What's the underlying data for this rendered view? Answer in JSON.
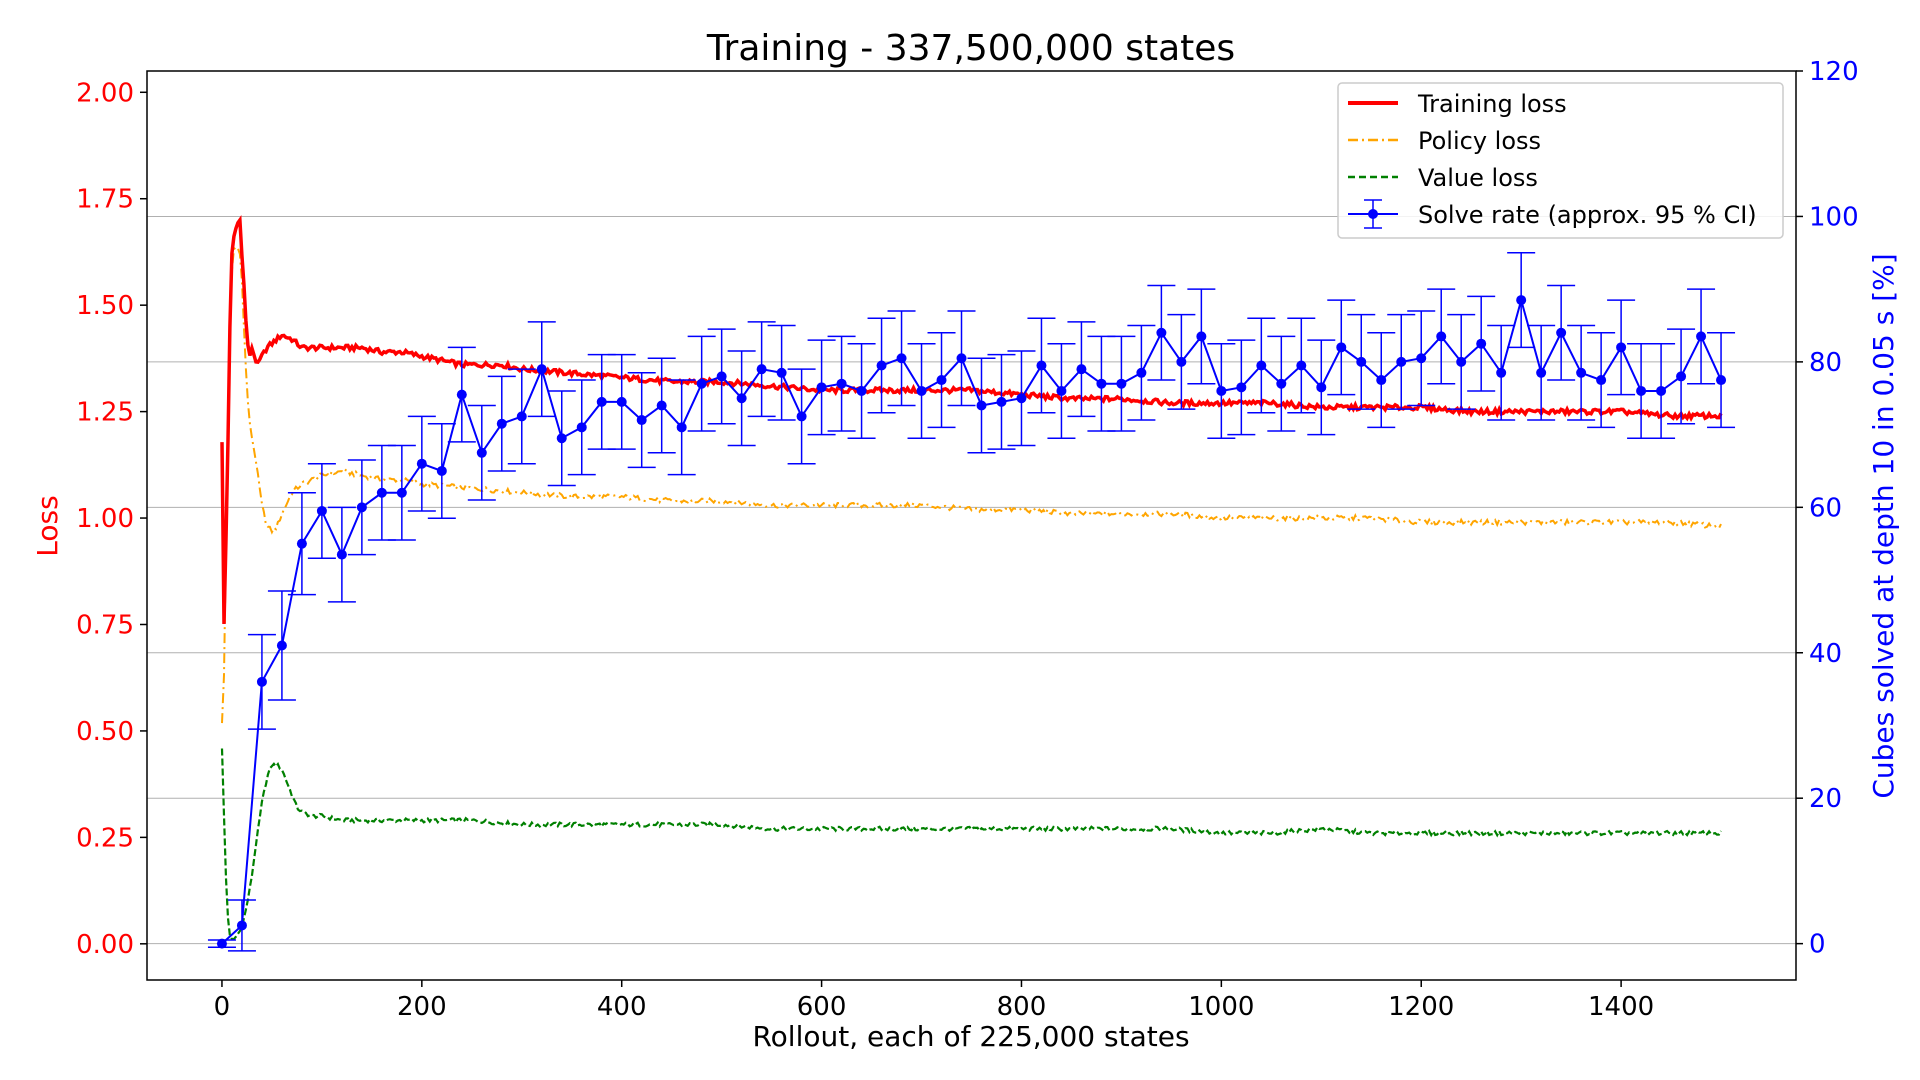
{
  "chart_data": {
    "type": "line",
    "title": "Training - 337,500,000 states",
    "xlabel": "Rollout, each of 225,000 states",
    "ylabel_left": "Loss",
    "ylabel_right": "Cubes solved at depth 10 in 0.05 s [%]",
    "xlim": [
      -75,
      1575
    ],
    "ylim_left": [
      -0.085,
      2.05
    ],
    "ylim_right": [
      -5,
      120
    ],
    "x_ticks": [
      "0",
      "200",
      "400",
      "600",
      "800",
      "1000",
      "1200",
      "1400"
    ],
    "x_tick_values": [
      0,
      200,
      400,
      600,
      800,
      1000,
      1200,
      1400
    ],
    "y_left_ticks": [
      "0.00",
      "0.25",
      "0.50",
      "0.75",
      "1.00",
      "1.25",
      "1.50",
      "1.75",
      "2.00"
    ],
    "y_left_tick_values": [
      0,
      0.25,
      0.5,
      0.75,
      1.0,
      1.25,
      1.5,
      1.75,
      2.0
    ],
    "y_right_ticks": [
      "0",
      "20",
      "40",
      "60",
      "80",
      "100",
      "120"
    ],
    "y_right_tick_values": [
      0,
      20,
      40,
      60,
      80,
      100,
      120
    ],
    "grid": "horizontal, right axis",
    "legend_position": "top-right",
    "legend": [
      {
        "label": "Training loss",
        "color": "#ff0000",
        "style": "solid"
      },
      {
        "label": "Policy loss",
        "color": "#ffa500",
        "style": "dashdot"
      },
      {
        "label": "Value loss",
        "color": "#008000",
        "style": "dashed"
      },
      {
        "label": "Solve rate (approx. 95 % CI)",
        "color": "#0000ff",
        "style": "errorbar"
      }
    ],
    "series": [
      {
        "name": "Training loss",
        "axis": "left",
        "color": "#ff0000",
        "x": [
          0,
          2,
          5,
          8,
          10,
          12,
          15,
          18,
          20,
          22,
          25,
          28,
          30,
          35,
          40,
          45,
          50,
          60,
          70,
          80,
          100,
          120,
          140,
          160,
          180,
          200,
          220,
          240,
          260,
          280,
          300,
          350,
          400,
          450,
          500,
          550,
          600,
          650,
          700,
          750,
          800,
          850,
          900,
          950,
          1000,
          1050,
          1100,
          1150,
          1200,
          1250,
          1300,
          1350,
          1400,
          1450,
          1500
        ],
        "values": [
          1.18,
          0.75,
          1.05,
          1.45,
          1.62,
          1.66,
          1.69,
          1.7,
          1.62,
          1.55,
          1.42,
          1.38,
          1.4,
          1.36,
          1.38,
          1.4,
          1.41,
          1.43,
          1.42,
          1.4,
          1.4,
          1.4,
          1.4,
          1.39,
          1.39,
          1.38,
          1.37,
          1.36,
          1.36,
          1.36,
          1.35,
          1.34,
          1.33,
          1.32,
          1.32,
          1.31,
          1.3,
          1.3,
          1.3,
          1.3,
          1.29,
          1.28,
          1.28,
          1.27,
          1.27,
          1.27,
          1.26,
          1.26,
          1.26,
          1.25,
          1.25,
          1.25,
          1.25,
          1.24,
          1.24
        ]
      },
      {
        "name": "Policy loss",
        "axis": "left",
        "color": "#ffa500",
        "x": [
          0,
          2,
          5,
          8,
          10,
          12,
          15,
          18,
          20,
          22,
          25,
          28,
          30,
          35,
          40,
          45,
          50,
          55,
          60,
          70,
          80,
          100,
          120,
          140,
          160,
          180,
          200,
          250,
          300,
          350,
          400,
          450,
          500,
          550,
          600,
          650,
          700,
          750,
          800,
          850,
          900,
          950,
          1000,
          1050,
          1100,
          1150,
          1200,
          1250,
          1300,
          1350,
          1400,
          1450,
          1500
        ],
        "values": [
          0.52,
          0.63,
          1.1,
          1.45,
          1.58,
          1.63,
          1.64,
          1.62,
          1.56,
          1.45,
          1.3,
          1.22,
          1.19,
          1.12,
          1.03,
          0.98,
          0.97,
          0.98,
          1.01,
          1.06,
          1.08,
          1.1,
          1.11,
          1.1,
          1.09,
          1.09,
          1.08,
          1.07,
          1.06,
          1.05,
          1.05,
          1.04,
          1.04,
          1.03,
          1.03,
          1.03,
          1.03,
          1.02,
          1.02,
          1.01,
          1.01,
          1.01,
          1.0,
          1.0,
          1.0,
          1.0,
          0.99,
          0.99,
          0.99,
          0.99,
          0.99,
          0.99,
          0.98
        ]
      },
      {
        "name": "Value loss",
        "axis": "left",
        "color": "#008000",
        "x": [
          0,
          2,
          5,
          8,
          10,
          12,
          15,
          18,
          20,
          25,
          30,
          35,
          40,
          45,
          50,
          55,
          60,
          65,
          70,
          75,
          80,
          90,
          100,
          120,
          140,
          160,
          180,
          200,
          250,
          300,
          350,
          400,
          450,
          500,
          550,
          600,
          650,
          700,
          750,
          800,
          850,
          900,
          950,
          1000,
          1050,
          1100,
          1150,
          1200,
          1250,
          1300,
          1350,
          1400,
          1450,
          1500
        ],
        "values": [
          0.46,
          0.3,
          0.08,
          0.02,
          0.01,
          0.01,
          0.02,
          0.03,
          0.04,
          0.09,
          0.16,
          0.25,
          0.33,
          0.39,
          0.42,
          0.42,
          0.41,
          0.38,
          0.35,
          0.32,
          0.31,
          0.3,
          0.3,
          0.29,
          0.29,
          0.29,
          0.29,
          0.29,
          0.29,
          0.28,
          0.28,
          0.28,
          0.28,
          0.28,
          0.27,
          0.27,
          0.27,
          0.27,
          0.27,
          0.27,
          0.27,
          0.27,
          0.27,
          0.26,
          0.26,
          0.27,
          0.26,
          0.26,
          0.26,
          0.26,
          0.26,
          0.26,
          0.26,
          0.26
        ]
      },
      {
        "name": "Solve rate (approx. 95 % CI)",
        "axis": "right",
        "color": "#0000ff",
        "x": [
          0,
          20,
          40,
          60,
          80,
          100,
          120,
          140,
          160,
          180,
          200,
          220,
          240,
          260,
          280,
          300,
          320,
          340,
          360,
          380,
          400,
          420,
          440,
          460,
          480,
          500,
          520,
          540,
          560,
          580,
          600,
          620,
          640,
          660,
          680,
          700,
          720,
          740,
          760,
          780,
          800,
          820,
          840,
          860,
          880,
          900,
          920,
          940,
          960,
          980,
          1000,
          1020,
          1040,
          1060,
          1080,
          1100,
          1120,
          1140,
          1160,
          1180,
          1200,
          1220,
          1240,
          1260,
          1280,
          1300,
          1320,
          1340,
          1360,
          1380,
          1400,
          1420,
          1440,
          1460,
          1480,
          1500
        ],
        "values": [
          0,
          2.5,
          36,
          41,
          55,
          59.5,
          53.5,
          60,
          62,
          62,
          66,
          65,
          75.5,
          67.5,
          71.5,
          72.5,
          79,
          69.5,
          71,
          74.5,
          74.5,
          72,
          74,
          71,
          77,
          78,
          75,
          79,
          78.5,
          72.5,
          76.5,
          77,
          76,
          79.5,
          80.5,
          76,
          77.5,
          80.5,
          74,
          74.5,
          75,
          79.5,
          76,
          79,
          77,
          77,
          78.5,
          84,
          80,
          83.5,
          76,
          76.5,
          79.5,
          77,
          79.5,
          76.5,
          82,
          80,
          77.5,
          80,
          80.5,
          83.5,
          80,
          82.5,
          78.5,
          88.5,
          78.5,
          84,
          78.5,
          77.5,
          82,
          76,
          76,
          78,
          83.5,
          77.5
        ],
        "error": [
          0.5,
          3.5,
          6.5,
          7.5,
          7,
          6.5,
          6.5,
          6.5,
          6.5,
          6.5,
          6.5,
          6.5,
          6.5,
          6.5,
          6.5,
          6.5,
          6.5,
          6.5,
          6.5,
          6.5,
          6.5,
          6.5,
          6.5,
          6.5,
          6.5,
          6.5,
          6.5,
          6.5,
          6.5,
          6.5,
          6.5,
          6.5,
          6.5,
          6.5,
          6.5,
          6.5,
          6.5,
          6.5,
          6.5,
          6.5,
          6.5,
          6.5,
          6.5,
          6.5,
          6.5,
          6.5,
          6.5,
          6.5,
          6.5,
          6.5,
          6.5,
          6.5,
          6.5,
          6.5,
          6.5,
          6.5,
          6.5,
          6.5,
          6.5,
          6.5,
          6.5,
          6.5,
          6.5,
          6.5,
          6.5,
          6.5,
          6.5,
          6.5,
          6.5,
          6.5,
          6.5,
          6.5,
          6.5,
          6.5,
          6.5,
          6.5
        ]
      }
    ]
  }
}
